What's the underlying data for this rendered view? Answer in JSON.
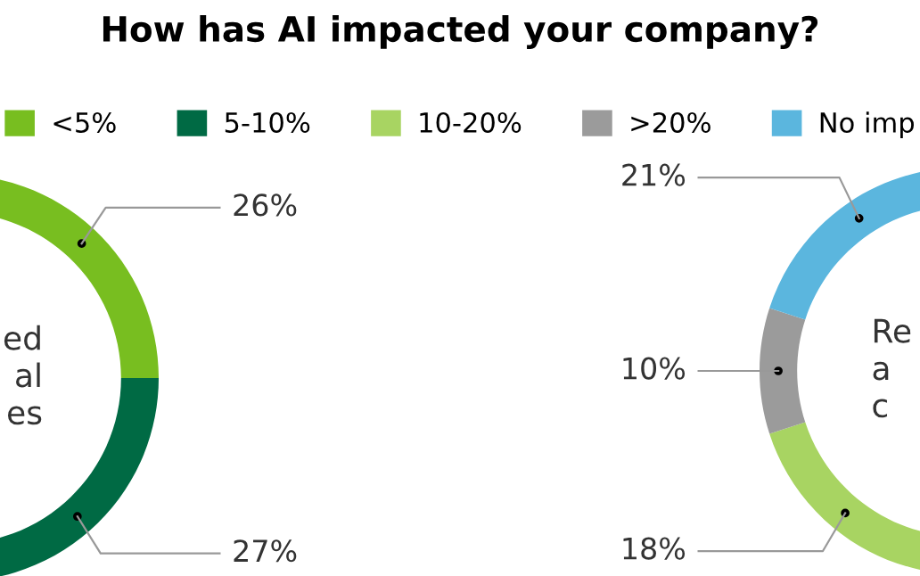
{
  "chart_data": [
    {
      "type": "donut",
      "title": "How has AI impacted your company?",
      "legend": "top",
      "categories": [
        "<5%",
        "5-10%"
      ],
      "values": [
        26,
        27
      ],
      "colors": [
        "#78be20",
        "#006a44"
      ],
      "value_labels": [
        "26%",
        "27%"
      ],
      "annotations": [
        "ed\nal\nes"
      ]
    },
    {
      "type": "donut",
      "legend": "top",
      "categories": [
        "10-20%",
        ">20%",
        "No imp"
      ],
      "values": [
        18,
        10,
        21
      ],
      "colors": [
        "#a8d462",
        "#9b9b9b",
        "#5bb6de"
      ],
      "value_labels": [
        "18%",
        "10%",
        "21%"
      ],
      "annotations": [
        "Re\na\nc"
      ]
    }
  ]
}
